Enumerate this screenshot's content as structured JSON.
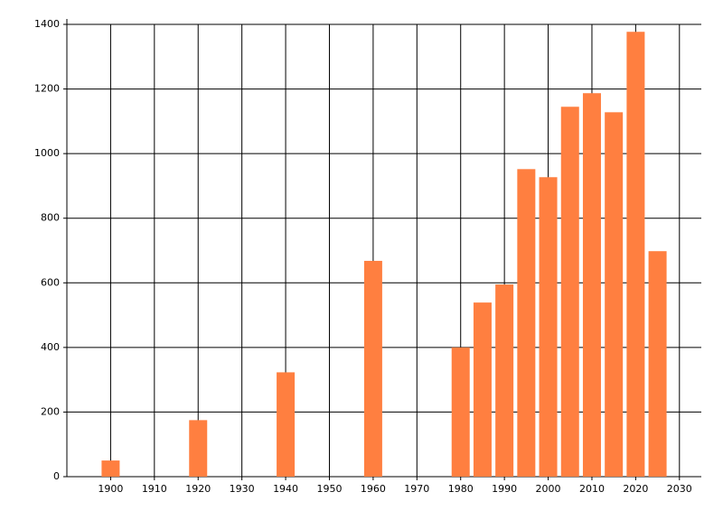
{
  "chart_data": {
    "type": "bar",
    "x": [
      1900,
      1920,
      1940,
      1960,
      1980,
      1985,
      1990,
      1995,
      2000,
      2005,
      2010,
      2015,
      2020,
      2025
    ],
    "values": [
      50,
      175,
      323,
      668,
      400,
      539,
      595,
      952,
      927,
      1145,
      1187,
      1128,
      1377,
      698
    ],
    "color": "#ff7f40",
    "xlim": [
      1890,
      2035
    ],
    "xticks": [
      1900,
      1910,
      1920,
      1930,
      1940,
      1950,
      1960,
      1970,
      1980,
      1990,
      2000,
      2010,
      2020,
      2030
    ],
    "ylim": [
      0,
      1400
    ],
    "yticks": [
      0,
      200,
      400,
      600,
      800,
      1000,
      1200,
      1400
    ],
    "grid": true
  }
}
